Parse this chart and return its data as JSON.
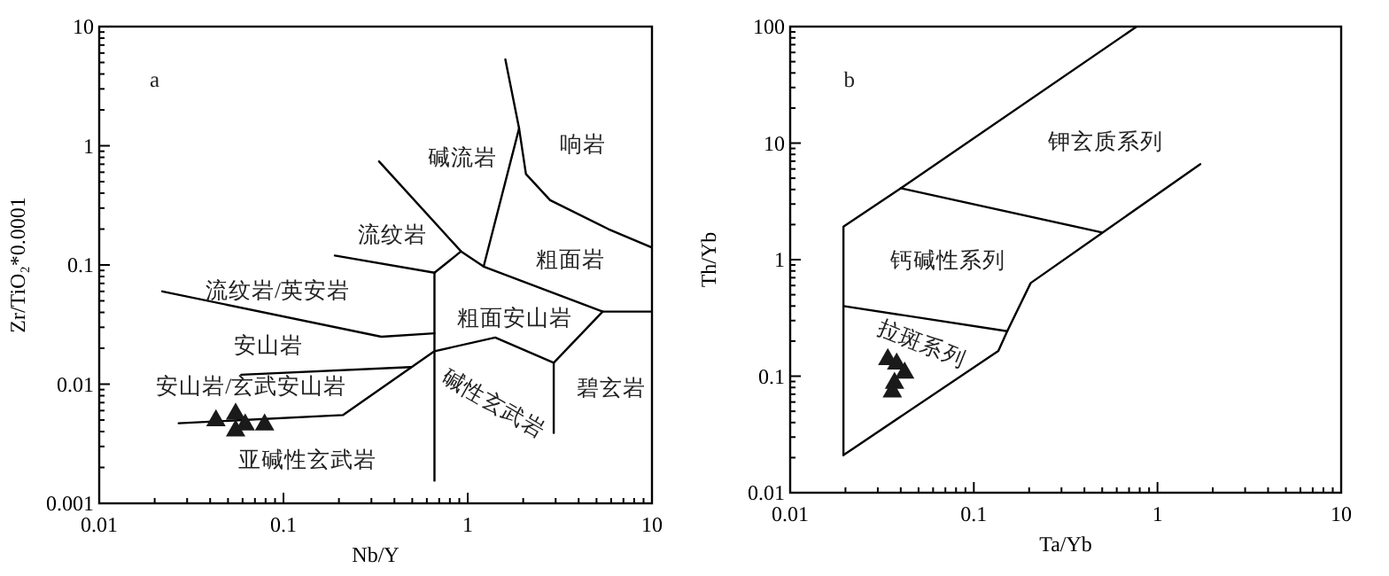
{
  "chart_data": [
    {
      "type": "scatter",
      "xlabel": "Nb/Y",
      "ylabel": "Zr/TiO₂*0.0001",
      "log": "xy",
      "xlim": [
        0.01,
        10
      ],
      "ylim": [
        0.001,
        10
      ],
      "xticks": [
        0.01,
        0.1,
        1,
        10
      ],
      "yticks": [
        0.001,
        0.01,
        0.1,
        1,
        10
      ],
      "series": [
        {
          "type": "line",
          "color": "#000000",
          "x": [
            0.66,
            0.66
          ],
          "values": [
            0.086,
            0.00155
          ]
        },
        {
          "type": "line",
          "color": "#000000",
          "x": [
            0.19,
            0.66
          ],
          "values": [
            0.12,
            0.086
          ]
        },
        {
          "type": "line",
          "color": "#000000",
          "x": [
            0.022,
            0.34,
            0.66
          ],
          "values": [
            0.06,
            0.025,
            0.0267
          ]
        },
        {
          "type": "line",
          "color": "#000000",
          "x": [
            0.059,
            0.49
          ],
          "values": [
            0.012,
            0.0139
          ]
        },
        {
          "type": "line",
          "color": "#000000",
          "x": [
            0.027,
            0.21,
            0.66,
            1.41,
            2.93,
            5.4,
            10
          ],
          "values": [
            0.0047,
            0.0055,
            0.0189,
            0.0246,
            0.0151,
            0.0406,
            0.0406
          ]
        },
        {
          "type": "line",
          "color": "#000000",
          "x": [
            2.93,
            2.93
          ],
          "values": [
            0.0151,
            0.0039
          ]
        },
        {
          "type": "line",
          "color": "#000000",
          "x": [
            0.33,
            0.92,
            0.66
          ],
          "values": [
            0.74,
            0.13,
            0.086
          ]
        },
        {
          "type": "line",
          "color": "#000000",
          "x": [
            0.92,
            1.22,
            5.4
          ],
          "values": [
            0.13,
            0.097,
            0.0406
          ]
        },
        {
          "type": "line",
          "color": "#000000",
          "x": [
            1.22,
            1.9,
            1.6
          ],
          "values": [
            0.097,
            1.4,
            5.3
          ]
        },
        {
          "type": "line",
          "color": "#000000",
          "x": [
            1.9,
            2.07,
            2.8,
            5.8,
            10
          ],
          "values": [
            1.4,
            0.58,
            0.35,
            0.2,
            0.14
          ]
        },
        {
          "marker": "triangle",
          "color": "#1a1a1a",
          "x": [
            0.043,
            0.055,
            0.055,
            0.062,
            0.079
          ],
          "values": [
            0.0051,
            0.0058,
            0.0042,
            0.0047,
            0.0047
          ]
        }
      ],
      "annotations": [
        "a",
        "碱流岩",
        "响岩",
        "流纹岩",
        "粗面岩",
        "流纹岩/英安岩",
        "粗面安山岩",
        "安山岩",
        "碧玄岩",
        "安山岩/玄武安山岩",
        "碱性玄武岩",
        "亚碱性玄武岩"
      ]
    },
    {
      "type": "scatter",
      "xlabel": "Ta/Yb",
      "ylabel": "Th/Yb",
      "log": "xy",
      "xlim": [
        0.01,
        10
      ],
      "ylim": [
        0.01,
        100
      ],
      "xticks": [
        0.01,
        0.1,
        1,
        10
      ],
      "yticks": [
        0.01,
        0.1,
        1,
        10,
        100
      ],
      "series": [
        {
          "type": "line",
          "color": "#000000",
          "x": [
            0.0195,
            0.0195,
            0.04,
            0.77
          ],
          "values": [
            0.021,
            1.92,
            4.1,
            100
          ]
        },
        {
          "type": "line",
          "color": "#000000",
          "x": [
            0.0195,
            0.136,
            0.152,
            0.204,
            1.71
          ],
          "values": [
            0.021,
            0.165,
            0.243,
            0.63,
            6.6
          ]
        },
        {
          "type": "line",
          "color": "#000000",
          "x": [
            0.04,
            0.5
          ],
          "values": [
            4.1,
            1.71
          ]
        },
        {
          "type": "line",
          "color": "#000000",
          "x": [
            0.0195,
            0.152
          ],
          "values": [
            0.4,
            0.243
          ]
        },
        {
          "marker": "triangle",
          "color": "#1a1a1a",
          "x": [
            0.034,
            0.038,
            0.042,
            0.037,
            0.036
          ],
          "values": [
            0.144,
            0.132,
            0.11,
            0.09,
            0.076
          ]
        }
      ],
      "annotations": [
        "b",
        "钾玄质系列",
        "钙碱性系列",
        "拉斑系列"
      ]
    }
  ]
}
